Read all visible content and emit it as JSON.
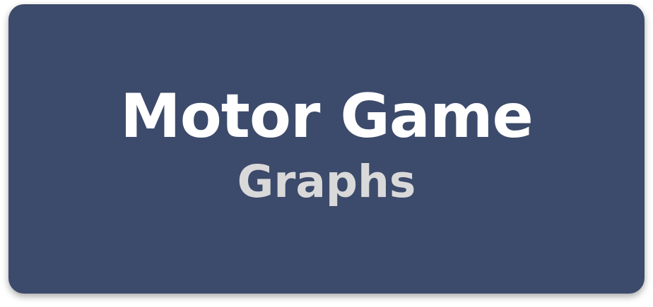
{
  "tile": {
    "title": "Motor Game",
    "subtitle": "Graphs"
  },
  "colors": {
    "tile_background": "#3c4a6b",
    "title_text": "#ffffff",
    "subtitle_text": "#d9d9d9"
  }
}
